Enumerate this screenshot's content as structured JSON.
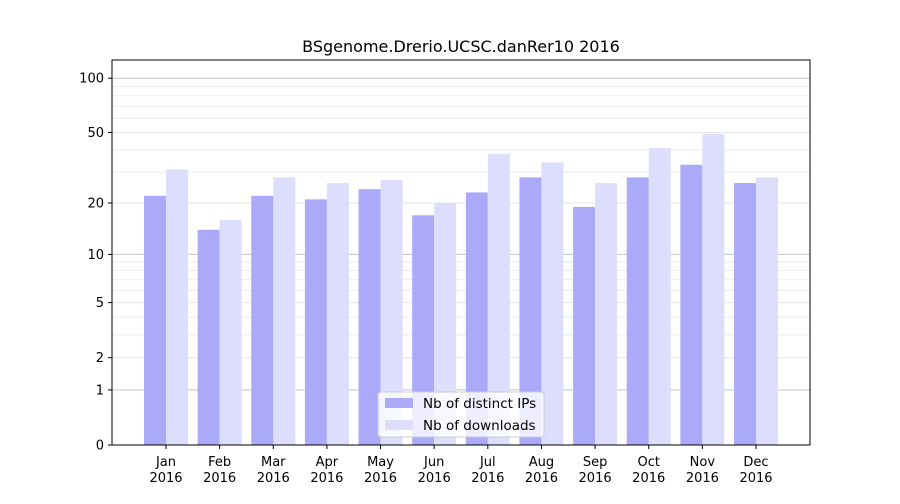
{
  "chart_data": {
    "type": "bar",
    "title": "BSgenome.Drerio.UCSC.danRer10 2016",
    "xlabel": "",
    "ylabel": "",
    "yscale": "symlog (log10(1+y))",
    "ylim": [
      0,
      120
    ],
    "yticks": [
      0,
      1,
      2,
      5,
      10,
      20,
      50,
      100
    ],
    "ytick_labels": [
      "0",
      "1",
      "2",
      "5",
      "10",
      "20",
      "50",
      "100"
    ],
    "categories": [
      [
        "Jan",
        "2016"
      ],
      [
        "Feb",
        "2016"
      ],
      [
        "Mar",
        "2016"
      ],
      [
        "Apr",
        "2016"
      ],
      [
        "May",
        "2016"
      ],
      [
        "Jun",
        "2016"
      ],
      [
        "Jul",
        "2016"
      ],
      [
        "Aug",
        "2016"
      ],
      [
        "Sep",
        "2016"
      ],
      [
        "Oct",
        "2016"
      ],
      [
        "Nov",
        "2016"
      ],
      [
        "Dec",
        "2016"
      ]
    ],
    "series": [
      {
        "name": "Nb of distinct IPs",
        "color": "#aaaaf9",
        "values": [
          22,
          14,
          22,
          21,
          24,
          17,
          23,
          28,
          19,
          28,
          33,
          26
        ]
      },
      {
        "name": "Nb of downloads",
        "color": "#ddddfc",
        "values": [
          31,
          16,
          28,
          26,
          27,
          20,
          38,
          34,
          26,
          41,
          49,
          28
        ]
      }
    ],
    "legend": "bottom-center",
    "grid": true
  }
}
